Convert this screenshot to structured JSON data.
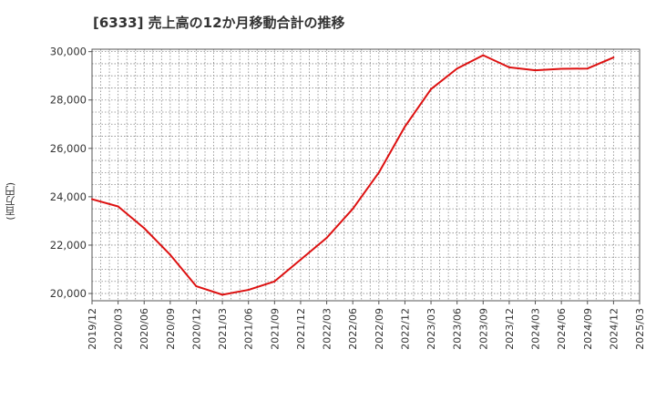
{
  "chart_data": {
    "type": "line",
    "title": "[6333]  売上高の12か月移動合計の推移",
    "ylabel": "(百万円)",
    "xlabel": "",
    "ylim": [
      19700,
      30100
    ],
    "yticks": [
      20000,
      22000,
      24000,
      26000,
      28000,
      30000
    ],
    "ytick_labels": [
      "20,000",
      "22,000",
      "24,000",
      "26,000",
      "28,000",
      "30,000"
    ],
    "xtick_labels": [
      "2019/12",
      "2020/03",
      "2020/06",
      "2020/09",
      "2020/12",
      "2021/03",
      "2021/06",
      "2021/09",
      "2021/12",
      "2022/03",
      "2022/06",
      "2022/09",
      "2022/12",
      "2023/03",
      "2023/06",
      "2023/09",
      "2023/12",
      "2024/03",
      "2024/06",
      "2024/09",
      "2024/12",
      "2025/03"
    ],
    "grid": true,
    "series": [
      {
        "name": "売上高の12か月移動合計",
        "color": "#dd1111",
        "x": [
          "2019/12",
          "2020/03",
          "2020/06",
          "2020/09",
          "2020/12",
          "2021/03",
          "2021/06",
          "2021/09",
          "2021/12",
          "2022/03",
          "2022/06",
          "2022/09",
          "2022/12",
          "2023/03",
          "2023/06",
          "2023/09",
          "2023/12",
          "2024/03",
          "2024/06",
          "2024/09",
          "2024/12"
        ],
        "values": [
          23900,
          23600,
          22700,
          21600,
          20300,
          19950,
          20150,
          20500,
          21400,
          22300,
          23500,
          25000,
          26900,
          28450,
          29300,
          29850,
          29350,
          29230,
          29290,
          29300,
          29760
        ]
      }
    ]
  }
}
